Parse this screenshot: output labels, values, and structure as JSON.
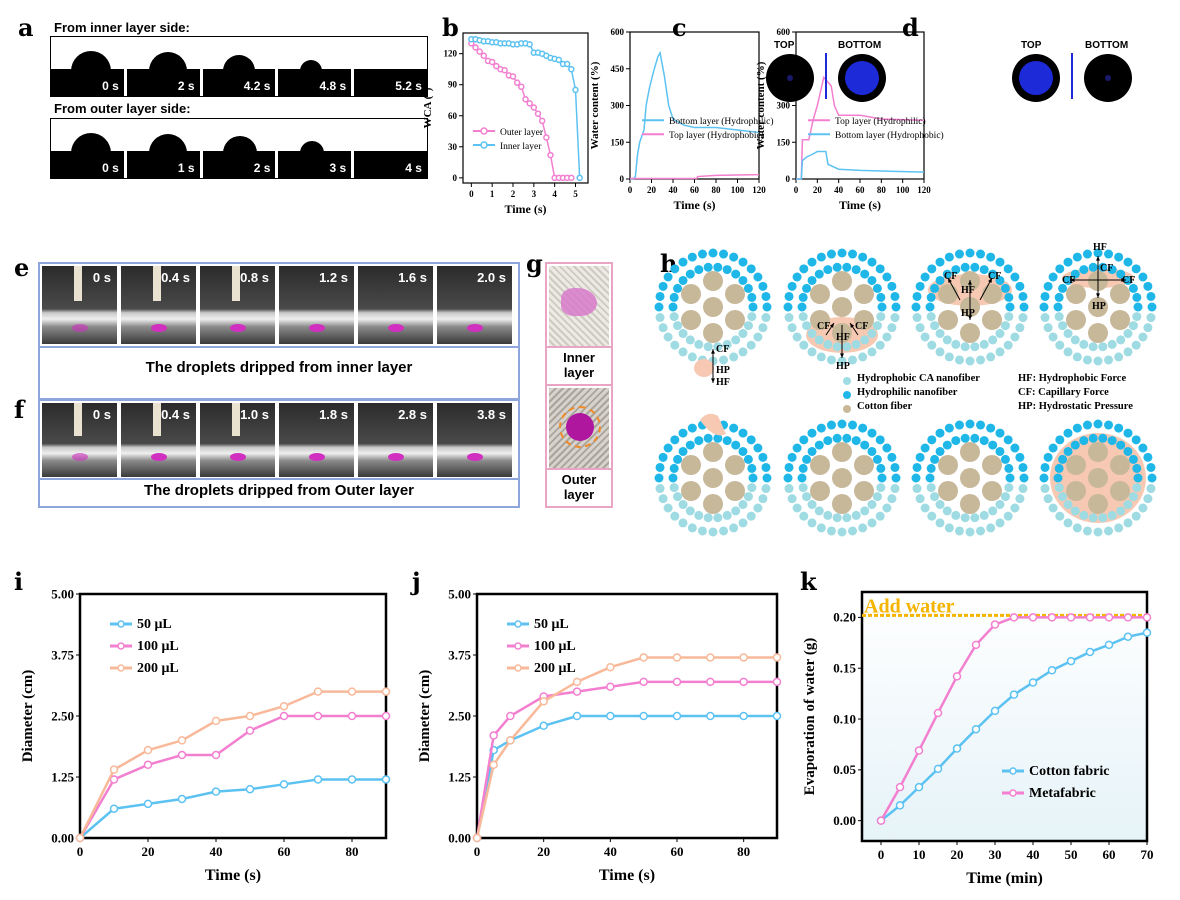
{
  "panel_labels": {
    "a": "a",
    "b": "b",
    "c": "c",
    "d": "d",
    "e": "e",
    "f": "f",
    "g": "g",
    "h": "h",
    "i": "i",
    "j": "j",
    "k": "k"
  },
  "panel_a": {
    "inner_title": "From inner layer side:",
    "inner_times": [
      "0 s",
      "2 s",
      "4.2 s",
      "4.8 s",
      "5.2 s"
    ],
    "outer_title": "From outer layer side:",
    "outer_times": [
      "0 s",
      "1 s",
      "2 s",
      "3 s",
      "4 s"
    ]
  },
  "panel_e": {
    "times": [
      "0 s",
      "0.4 s",
      "0.8 s",
      "1.2 s",
      "1.6 s",
      "2.0 s"
    ],
    "caption": "The droplets dripped from inner layer"
  },
  "panel_f": {
    "times": [
      "0 s",
      "0.4 s",
      "1.0 s",
      "1.8 s",
      "2.8 s",
      "3.8 s"
    ],
    "caption": "The droplets dripped from Outer layer"
  },
  "panel_g": {
    "inner_label": "Inner layer",
    "outer_label": "Outer layer"
  },
  "insets": {
    "top": "TOP",
    "bottom": "BOTTOM"
  },
  "panel_h": {
    "annotations": [
      "CF",
      "HP",
      "HF",
      "CF",
      "CF",
      "HF",
      "HP",
      "CF",
      "CF",
      "HF",
      "HP",
      "HF",
      "CF",
      "CF",
      "CF",
      "HP"
    ],
    "legend": [
      "Hydrophobic CA nanofiber",
      "Hydrophilic nanofiber",
      "Cotton fiber"
    ],
    "definitions": [
      "HF: Hydrophobic Force",
      "CF: Capillary Force",
      "HP: Hydrostatic Pressure"
    ],
    "colors": {
      "hydrophobic": "#9edbe3",
      "hydrophilic": "#1fb7e8",
      "cotton": "#c8b89a",
      "water": "#f7c9b3"
    }
  },
  "chart_data": [
    {
      "id": "b",
      "type": "line",
      "xlabel": "Time (s)",
      "ylabel": "WCA (°)",
      "xlim": [
        -0.4,
        5.6
      ],
      "ylim": [
        -5,
        140
      ],
      "xticks": [
        0,
        1,
        2,
        3,
        4,
        5
      ],
      "xticklabels": [
        "0",
        "1",
        "2",
        "3",
        "4",
        "5"
      ],
      "yticks": [
        0,
        30,
        60,
        90,
        120
      ],
      "yticklabels": [
        "0",
        "30",
        "60",
        "90",
        "120"
      ],
      "legend_pos": "bottom-left",
      "markers": true,
      "series": [
        {
          "name": "Outer layer",
          "color": "#f27fcf",
          "x": [
            0,
            0.2,
            0.4,
            0.6,
            0.8,
            1.0,
            1.2,
            1.4,
            1.6,
            1.8,
            2.0,
            2.2,
            2.4,
            2.6,
            2.8,
            3.0,
            3.2,
            3.4,
            3.6,
            3.8,
            4.0,
            4.2,
            4.4,
            4.6,
            4.8
          ],
          "y": [
            130,
            126,
            122,
            118,
            113,
            112,
            108,
            105,
            104,
            99,
            98,
            92,
            88,
            76,
            72,
            68,
            62,
            55,
            39,
            22,
            0,
            0,
            0,
            0,
            0
          ]
        },
        {
          "name": "Inner layer",
          "color": "#5cc2f2",
          "x": [
            0,
            0.2,
            0.4,
            0.6,
            0.8,
            1.0,
            1.2,
            1.4,
            1.6,
            1.8,
            2.0,
            2.2,
            2.4,
            2.6,
            2.8,
            3.0,
            3.2,
            3.4,
            3.6,
            3.8,
            4.0,
            4.2,
            4.4,
            4.6,
            4.8,
            5.0,
            5.2
          ],
          "y": [
            134,
            134,
            133,
            132,
            132,
            131,
            131,
            130,
            130,
            130,
            129,
            129,
            130,
            130,
            129,
            121,
            121,
            120,
            118,
            116,
            115,
            114,
            110,
            110,
            105,
            85,
            0
          ]
        }
      ]
    },
    {
      "id": "c",
      "type": "line",
      "xlabel": "Time (s)",
      "ylabel": "Water content (%)",
      "xlim": [
        0,
        120
      ],
      "ylim": [
        0,
        600
      ],
      "xticks": [
        0,
        20,
        40,
        60,
        80,
        100,
        120
      ],
      "xticklabels": [
        "0",
        "20",
        "40",
        "60",
        "80",
        "100",
        "120"
      ],
      "yticks": [
        0,
        150,
        300,
        450,
        600
      ],
      "yticklabels": [
        "0",
        "150",
        "300",
        "450",
        "600"
      ],
      "legend_pos": "center-right",
      "markers": false,
      "series": [
        {
          "name": "Bottom layer (Hydrophilic)",
          "color": "#5cc2f2",
          "x": [
            0,
            3,
            5,
            7,
            9,
            11,
            13,
            15,
            18,
            22,
            26,
            28,
            32,
            36,
            40,
            50,
            60,
            80,
            100,
            120
          ],
          "y": [
            0,
            0,
            10,
            100,
            150,
            175,
            200,
            300,
            370,
            440,
            500,
            515,
            420,
            300,
            245,
            220,
            210,
            210,
            200,
            190
          ]
        },
        {
          "name": "Top layer (Hydrophobic)",
          "color": "#f27fcf",
          "x": [
            0,
            62,
            63,
            80,
            120
          ],
          "y": [
            2,
            2,
            10,
            15,
            18
          ]
        }
      ]
    },
    {
      "id": "d",
      "type": "line",
      "xlabel": "Time (s)",
      "ylabel": "Water content (%)",
      "xlim": [
        0,
        120
      ],
      "ylim": [
        0,
        600
      ],
      "xticks": [
        0,
        20,
        40,
        60,
        80,
        100,
        120
      ],
      "xticklabels": [
        "0",
        "20",
        "40",
        "60",
        "80",
        "100",
        "120"
      ],
      "yticks": [
        0,
        150,
        300,
        450,
        600
      ],
      "yticklabels": [
        "0",
        "150",
        "300",
        "450",
        "600"
      ],
      "legend_pos": "center-right",
      "markers": false,
      "series": [
        {
          "name": "Top layer (Hydrophilic)",
          "color": "#f27fcf",
          "x": [
            0,
            5,
            6,
            12,
            16,
            20,
            26,
            30,
            33,
            36,
            40,
            60,
            80,
            120
          ],
          "y": [
            0,
            0,
            160,
            160,
            240,
            300,
            415,
            395,
            380,
            300,
            260,
            260,
            245,
            240
          ]
        },
        {
          "name": "Bottom layer (Hydrophobic)",
          "color": "#5cc2f2",
          "x": [
            0,
            5,
            6,
            10,
            15,
            20,
            28,
            30,
            40,
            60,
            120
          ],
          "y": [
            0,
            0,
            75,
            90,
            100,
            112,
            112,
            60,
            40,
            35,
            28
          ]
        }
      ]
    },
    {
      "id": "i",
      "type": "line",
      "xlabel": "Time (s)",
      "ylabel": "Diameter (cm)",
      "xlim": [
        0,
        90
      ],
      "ylim": [
        0,
        5
      ],
      "xticks": [
        0,
        20,
        40,
        60,
        80
      ],
      "xticklabels": [
        "0",
        "20",
        "40",
        "60",
        "80"
      ],
      "yticks": [
        0,
        1.25,
        2.5,
        3.75,
        5
      ],
      "yticklabels": [
        "0.00",
        "1.25",
        "2.50",
        "3.75",
        "5.00"
      ],
      "legend_pos": "top-left",
      "markers": true,
      "series": [
        {
          "name": "50 μL",
          "color": "#5cc2f2",
          "x": [
            0,
            10,
            20,
            30,
            40,
            50,
            60,
            70,
            80,
            90
          ],
          "y": [
            0,
            0.6,
            0.7,
            0.8,
            0.95,
            1.0,
            1.1,
            1.2,
            1.2,
            1.2
          ]
        },
        {
          "name": "100 μL",
          "color": "#f27fcf",
          "x": [
            0,
            10,
            20,
            30,
            40,
            50,
            60,
            70,
            80,
            90
          ],
          "y": [
            0,
            1.2,
            1.5,
            1.7,
            1.7,
            2.2,
            2.5,
            2.5,
            2.5,
            2.5
          ]
        },
        {
          "name": "200 μL",
          "color": "#f8b99a",
          "x": [
            0,
            10,
            20,
            30,
            40,
            50,
            60,
            70,
            80,
            90
          ],
          "y": [
            0,
            1.4,
            1.8,
            2.0,
            2.4,
            2.5,
            2.7,
            3.0,
            3.0,
            3.0
          ]
        }
      ]
    },
    {
      "id": "j",
      "type": "line",
      "xlabel": "Time (s)",
      "ylabel": "Diameter (cm)",
      "xlim": [
        0,
        90
      ],
      "ylim": [
        0,
        5
      ],
      "xticks": [
        0,
        20,
        40,
        60,
        80
      ],
      "xticklabels": [
        "0",
        "20",
        "40",
        "60",
        "80"
      ],
      "yticks": [
        0,
        1.25,
        2.5,
        3.75,
        5
      ],
      "yticklabels": [
        "0.00",
        "1.25",
        "2.50",
        "3.75",
        "5.00"
      ],
      "legend_pos": "top-left",
      "markers": true,
      "series": [
        {
          "name": "50 μL",
          "color": "#5cc2f2",
          "x": [
            0,
            5,
            10,
            20,
            30,
            40,
            50,
            60,
            70,
            80,
            90
          ],
          "y": [
            0,
            1.8,
            2.0,
            2.3,
            2.5,
            2.5,
            2.5,
            2.5,
            2.5,
            2.5,
            2.5
          ]
        },
        {
          "name": "100 μL",
          "color": "#f27fcf",
          "x": [
            0,
            5,
            10,
            20,
            30,
            40,
            50,
            60,
            70,
            80,
            90
          ],
          "y": [
            0,
            2.1,
            2.5,
            2.9,
            3.0,
            3.1,
            3.2,
            3.2,
            3.2,
            3.2,
            3.2
          ]
        },
        {
          "name": "200 μL",
          "color": "#f8b99a",
          "x": [
            0,
            5,
            10,
            20,
            30,
            40,
            50,
            60,
            70,
            80,
            90
          ],
          "y": [
            0,
            1.5,
            2.0,
            2.8,
            3.2,
            3.5,
            3.7,
            3.7,
            3.7,
            3.7,
            3.7
          ]
        }
      ]
    },
    {
      "id": "k",
      "type": "line",
      "xlabel": "Time (min)",
      "ylabel": "Evaporation of water (g)",
      "xlim": [
        -5,
        70
      ],
      "ylim": [
        -0.02,
        0.225
      ],
      "xticks": [
        0,
        10,
        20,
        30,
        40,
        50,
        60,
        70
      ],
      "xticklabels": [
        "0",
        "10",
        "20",
        "30",
        "40",
        "50",
        "60",
        "70"
      ],
      "yticks": [
        0,
        0.05,
        0.1,
        0.15,
        0.2
      ],
      "yticklabels": [
        "0.00",
        "0.05",
        "0.10",
        "0.15",
        "0.20"
      ],
      "legend_pos": "bottom-right",
      "markers": true,
      "annotation": {
        "text": "Add water",
        "y": 0.202,
        "color": "#f5b400"
      },
      "background": "#e6f3f8",
      "series": [
        {
          "name": "Cotton fabric",
          "color": "#5cc2f2",
          "x": [
            0,
            5,
            10,
            15,
            20,
            25,
            30,
            35,
            40,
            45,
            50,
            55,
            60,
            65,
            70
          ],
          "y": [
            0,
            0.015,
            0.033,
            0.051,
            0.071,
            0.09,
            0.108,
            0.124,
            0.136,
            0.148,
            0.157,
            0.166,
            0.173,
            0.181,
            0.185
          ]
        },
        {
          "name": "Metafabric",
          "color": "#f27fcf",
          "x": [
            0,
            5,
            10,
            15,
            20,
            25,
            30,
            35,
            40,
            45,
            50,
            55,
            60,
            65,
            70
          ],
          "y": [
            0,
            0.033,
            0.069,
            0.106,
            0.142,
            0.173,
            0.193,
            0.2,
            0.2,
            0.2,
            0.2,
            0.2,
            0.2,
            0.2,
            0.2
          ]
        }
      ]
    }
  ]
}
